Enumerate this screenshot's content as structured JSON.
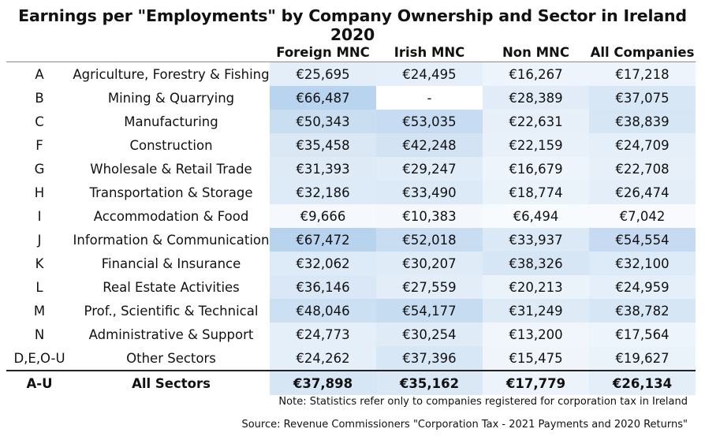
{
  "chart_data": {
    "type": "table",
    "title": "Earnings per \"Employments\" by Company Ownership and Sector in Ireland 2020",
    "columns": [
      "Foreign MNC",
      "Irish MNC",
      "Non MNC",
      "All Companies"
    ],
    "rows": [
      {
        "code": "A",
        "sector": "Agriculture, Forestry & Fishing",
        "cells": [
          "€25,695",
          "€24,495",
          "€16,267",
          "€17,218"
        ],
        "values": [
          25695,
          24495,
          16267,
          17218
        ]
      },
      {
        "code": "B",
        "sector": "Mining & Quarrying",
        "cells": [
          "€66,487",
          "-",
          "€28,389",
          "€37,075"
        ],
        "values": [
          66487,
          null,
          28389,
          37075
        ]
      },
      {
        "code": "C",
        "sector": "Manufacturing",
        "cells": [
          "€50,343",
          "€53,035",
          "€22,631",
          "€38,839"
        ],
        "values": [
          50343,
          53035,
          22631,
          38839
        ]
      },
      {
        "code": "F",
        "sector": "Construction",
        "cells": [
          "€35,458",
          "€42,248",
          "€22,159",
          "€24,709"
        ],
        "values": [
          35458,
          42248,
          22159,
          24709
        ]
      },
      {
        "code": "G",
        "sector": "Wholesale & Retail Trade",
        "cells": [
          "€31,393",
          "€29,247",
          "€16,679",
          "€22,708"
        ],
        "values": [
          31393,
          29247,
          16679,
          22708
        ]
      },
      {
        "code": "H",
        "sector": "Transportation & Storage",
        "cells": [
          "€32,186",
          "€33,490",
          "€18,774",
          "€26,474"
        ],
        "values": [
          32186,
          33490,
          18774,
          26474
        ]
      },
      {
        "code": "I",
        "sector": "Accommodation & Food",
        "cells": [
          "€9,666",
          "€10,383",
          "€6,494",
          "€7,042"
        ],
        "values": [
          9666,
          10383,
          6494,
          7042
        ]
      },
      {
        "code": "J",
        "sector": "Information & Communication",
        "cells": [
          "€67,472",
          "€52,018",
          "€33,937",
          "€54,554"
        ],
        "values": [
          67472,
          52018,
          33937,
          54554
        ]
      },
      {
        "code": "K",
        "sector": "Financial & Insurance",
        "cells": [
          "€32,062",
          "€30,207",
          "€38,326",
          "€32,100"
        ],
        "values": [
          32062,
          30207,
          38326,
          32100
        ]
      },
      {
        "code": "L",
        "sector": "Real Estate Activities",
        "cells": [
          "€36,146",
          "€27,559",
          "€20,213",
          "€24,959"
        ],
        "values": [
          36146,
          27559,
          20213,
          24959
        ]
      },
      {
        "code": "M",
        "sector": "Prof., Scientific & Technical",
        "cells": [
          "€48,046",
          "€54,177",
          "€31,249",
          "€38,782"
        ],
        "values": [
          48046,
          54177,
          31249,
          38782
        ]
      },
      {
        "code": "N",
        "sector": "Administrative & Support",
        "cells": [
          "€24,773",
          "€30,254",
          "€13,200",
          "€17,564"
        ],
        "values": [
          24773,
          30254,
          13200,
          17564
        ]
      },
      {
        "code": "D,E,O-U",
        "sector": "Other Sectors",
        "cells": [
          "€24,262",
          "€37,396",
          "€15,475",
          "€19,627"
        ],
        "values": [
          24262,
          37396,
          15475,
          19627
        ]
      }
    ],
    "total": {
      "code": "A-U",
      "sector": "All Sectors",
      "cells": [
        "€37,898",
        "€35,162",
        "€17,779",
        "€26,134"
      ],
      "values": [
        37898,
        35162,
        17779,
        26134
      ]
    },
    "note": "Note: Statistics refer only to companies registered for corporation tax in Ireland",
    "source": "Source: Revenue Commissioners \"Corporation Tax - 2021 Payments and 2020 Returns\"",
    "color_scale": {
      "low": "#ffffff",
      "high": "#b8d3ee",
      "max_value": 67472
    }
  }
}
